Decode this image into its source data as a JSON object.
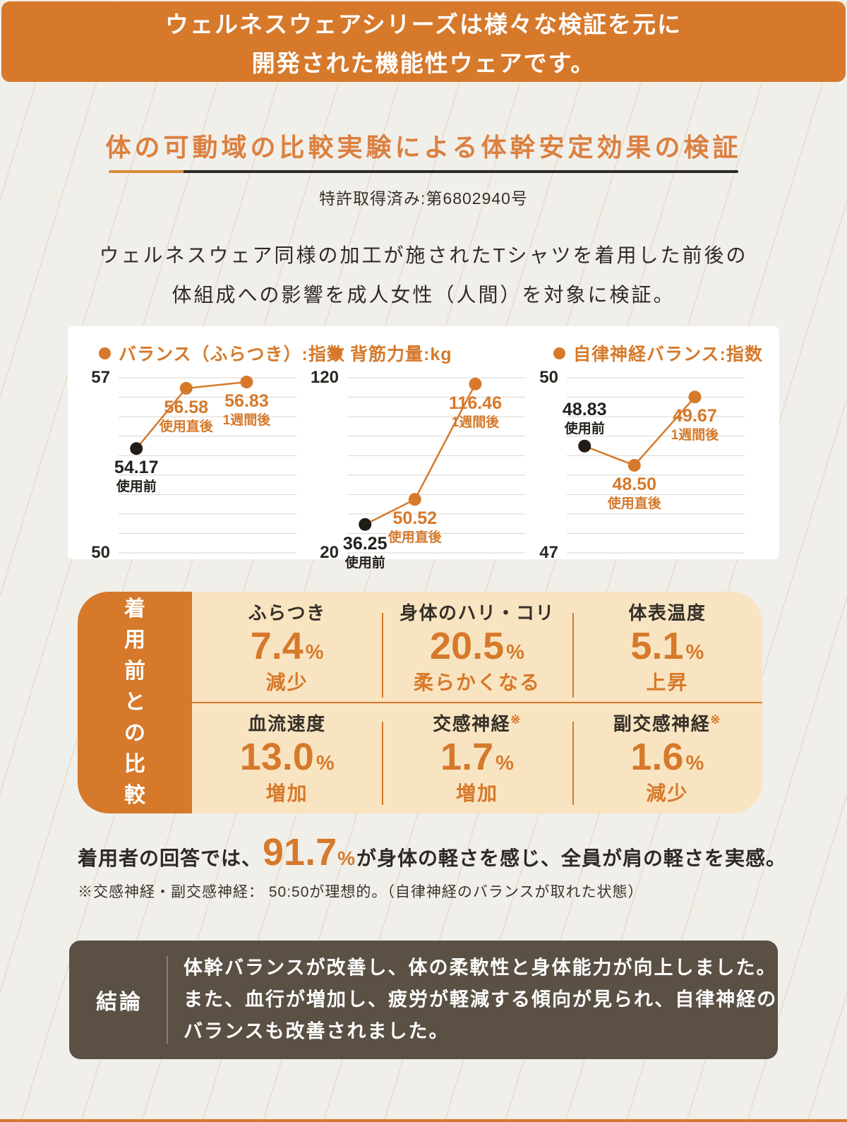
{
  "colors": {
    "accent_orange": "#D6792B",
    "title_orange": "#DB8040",
    "table_bg": "#F9E4C1",
    "conclusion_bg": "#5A5044",
    "page_bg": "#F1EFEA",
    "text_dark": "#2E2A24"
  },
  "banner": {
    "line1": "ウェルネスウェアシリーズは様々な検証を元に",
    "line2": "開発された機能性ウェアです。"
  },
  "heading": {
    "title": "体の可動域の比較実験による体幹安定効果の検証",
    "patent": "特許取得済み:第6802940号"
  },
  "description": {
    "line1": "ウェルネスウェア同様の加工が施されたTシャツを着用した前後の",
    "line2": "体組成への影響を成人女性（人間）を対象に検証。"
  },
  "chart_data": [
    {
      "type": "line",
      "title": "バランス（ふらつき）:指数",
      "x_categories": [
        "使用前",
        "使用直後",
        "1週間後"
      ],
      "values": [
        54.17,
        56.58,
        56.83
      ],
      "value_labels": [
        "54.17",
        "56.58",
        "56.83"
      ],
      "ylim": [
        50,
        57
      ],
      "y_top_label": "57",
      "y_bottom_label": "50",
      "gridlines": 10,
      "grid": "horizontal-only",
      "point_colors": [
        "black",
        "orange",
        "orange"
      ],
      "label_positions": [
        "below",
        "below",
        "below"
      ],
      "legend_position": "top-left"
    },
    {
      "type": "line",
      "title": "背筋力量:kg",
      "x_categories": [
        "使用前",
        "使用直後",
        "1週間後"
      ],
      "values": [
        36.25,
        50.52,
        116.46
      ],
      "value_labels": [
        "36.25",
        "50.52",
        "116.46"
      ],
      "ylim": [
        20,
        120
      ],
      "y_top_label": "120",
      "y_bottom_label": "20",
      "gridlines": 10,
      "grid": "horizontal-only",
      "point_colors": [
        "black",
        "orange",
        "orange"
      ],
      "label_positions": [
        "below",
        "below",
        "below"
      ],
      "legend_position": "top-left"
    },
    {
      "type": "line",
      "title": "自律神経バランス:指数",
      "x_categories": [
        "使用前",
        "使用直後",
        "1週間後"
      ],
      "values": [
        48.83,
        48.5,
        49.67
      ],
      "value_labels": [
        "48.83",
        "48.50",
        "49.67"
      ],
      "ylim": [
        47,
        50
      ],
      "y_top_label": "50",
      "y_bottom_label": "47",
      "gridlines": 10,
      "grid": "horizontal-only",
      "point_colors": [
        "black",
        "orange",
        "orange"
      ],
      "label_positions": [
        "above",
        "below",
        "below"
      ],
      "legend_position": "top-left"
    }
  ],
  "comparison": {
    "sidebar_label": "着用前との比較",
    "cells": [
      {
        "label": "ふらつき",
        "sup": "",
        "value": "7.4",
        "unit": "%",
        "effect": "減少"
      },
      {
        "label": "身体のハリ・コリ",
        "sup": "",
        "value": "20.5",
        "unit": "%",
        "effect": "柔らかくなる"
      },
      {
        "label": "体表温度",
        "sup": "",
        "value": "5.1",
        "unit": "%",
        "effect": "上昇"
      },
      {
        "label": "血流速度",
        "sup": "",
        "value": "13.0",
        "unit": "%",
        "effect": "増加"
      },
      {
        "label": "交感神経",
        "sup": "※",
        "value": "1.7",
        "unit": "%",
        "effect": "増加"
      },
      {
        "label": "副交感神経",
        "sup": "※",
        "value": "1.6",
        "unit": "%",
        "effect": "減少"
      }
    ]
  },
  "survey": {
    "prefix": "着用者の回答では、",
    "value": "91.7",
    "unit": "%",
    "suffix": "が身体の軽さを感じ、全員が肩の軽さを実感。",
    "note": "※交感神経・副交感神経： 50:50が理想的。（自律神経のバランスが取れた状態）"
  },
  "conclusion": {
    "label": "結論",
    "lines": [
      "体幹バランスが改善し、体の柔軟性と身体能力が向上しました。",
      "また、血行が増加し、疲労が軽減する傾向が見られ、自律神経の",
      "バランスも改善されました。"
    ]
  }
}
